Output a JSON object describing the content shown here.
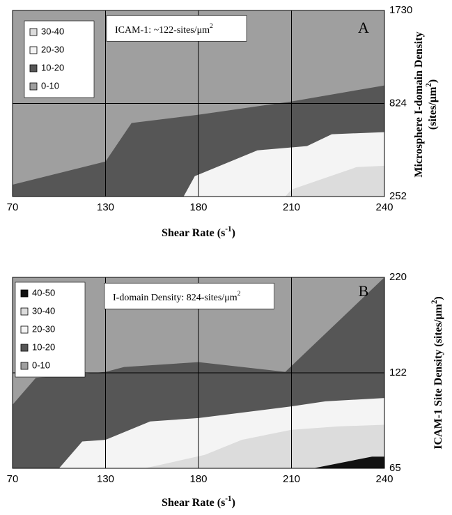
{
  "chart_data": [
    {
      "type": "contour",
      "label": "A",
      "annotation": [
        "ICAM-1: ~122-sites/μm",
        "2"
      ],
      "xlabel": [
        "Shear Rate (s",
        "-1",
        ")"
      ],
      "ylabel": [
        [
          "Microsphere I-domain Density"
        ],
        [
          "(sites/μm",
          "2",
          ")"
        ]
      ],
      "xlim": [
        70,
        240
      ],
      "xticks": [
        70,
        130,
        180,
        210,
        240
      ],
      "ylim": [
        252,
        1730
      ],
      "yticks": [
        252,
        824,
        1730
      ],
      "grid": true,
      "legend": "upper left",
      "series": [
        {
          "name": "0-10",
          "color": "#9f9f9f"
        },
        {
          "name": "10-20",
          "color": "#565656",
          "x": [
            70,
            130,
            144,
            180,
            210,
            240
          ],
          "values": [
            325,
            467,
            704,
            755,
            844,
            1000
          ]
        },
        {
          "name": "20-30",
          "color": "#f4f4f4",
          "x": [
            172,
            178,
            199,
            215,
            223,
            240
          ],
          "values": [
            252,
            377,
            536,
            562,
            635,
            648
          ]
        },
        {
          "name": "30-40",
          "color": "#dcdcdc",
          "x": [
            208,
            210,
            231,
            240
          ],
          "values": [
            252,
            295,
            433,
            441
          ]
        }
      ]
    },
    {
      "type": "contour",
      "label": "B",
      "annotation": [
        "I-domain Density: 824-sites/μm",
        "2"
      ],
      "xlabel": [
        "Shear Rate (s",
        "-1",
        ")"
      ],
      "ylabel": [
        [
          "ICAM-1 Site Density (sites/μm",
          "2",
          ")"
        ]
      ],
      "xlim": [
        70,
        240
      ],
      "xticks": [
        70,
        130,
        180,
        210,
        240
      ],
      "ylim": [
        65,
        220
      ],
      "yticks": [
        65,
        122,
        220
      ],
      "grid": true,
      "legend": "upper left",
      "series": [
        {
          "name": "0-10",
          "color": "#9f9f9f"
        },
        {
          "name": "10-20",
          "color": "#565656",
          "x": [
            70,
            85,
            130,
            140,
            180,
            208,
            240
          ],
          "values": [
            103,
            119,
            123,
            128,
            133,
            123,
            220
          ]
        },
        {
          "name": "20-30",
          "color": "#f4f4f4",
          "x": [
            100,
            115,
            130,
            154,
            180,
            210,
            221,
            240
          ],
          "values": [
            65,
            81,
            82,
            93,
            95,
            102,
            105,
            107
          ]
        },
        {
          "name": "30-40",
          "color": "#dcdcdc",
          "x": [
            151,
            182,
            194,
            210,
            225,
            240
          ],
          "values": [
            65,
            73,
            82,
            88,
            90,
            91
          ]
        },
        {
          "name": "40-50",
          "color": "#111111",
          "x": [
            217,
            236,
            240
          ],
          "values": [
            65,
            72,
            72
          ]
        }
      ]
    }
  ]
}
